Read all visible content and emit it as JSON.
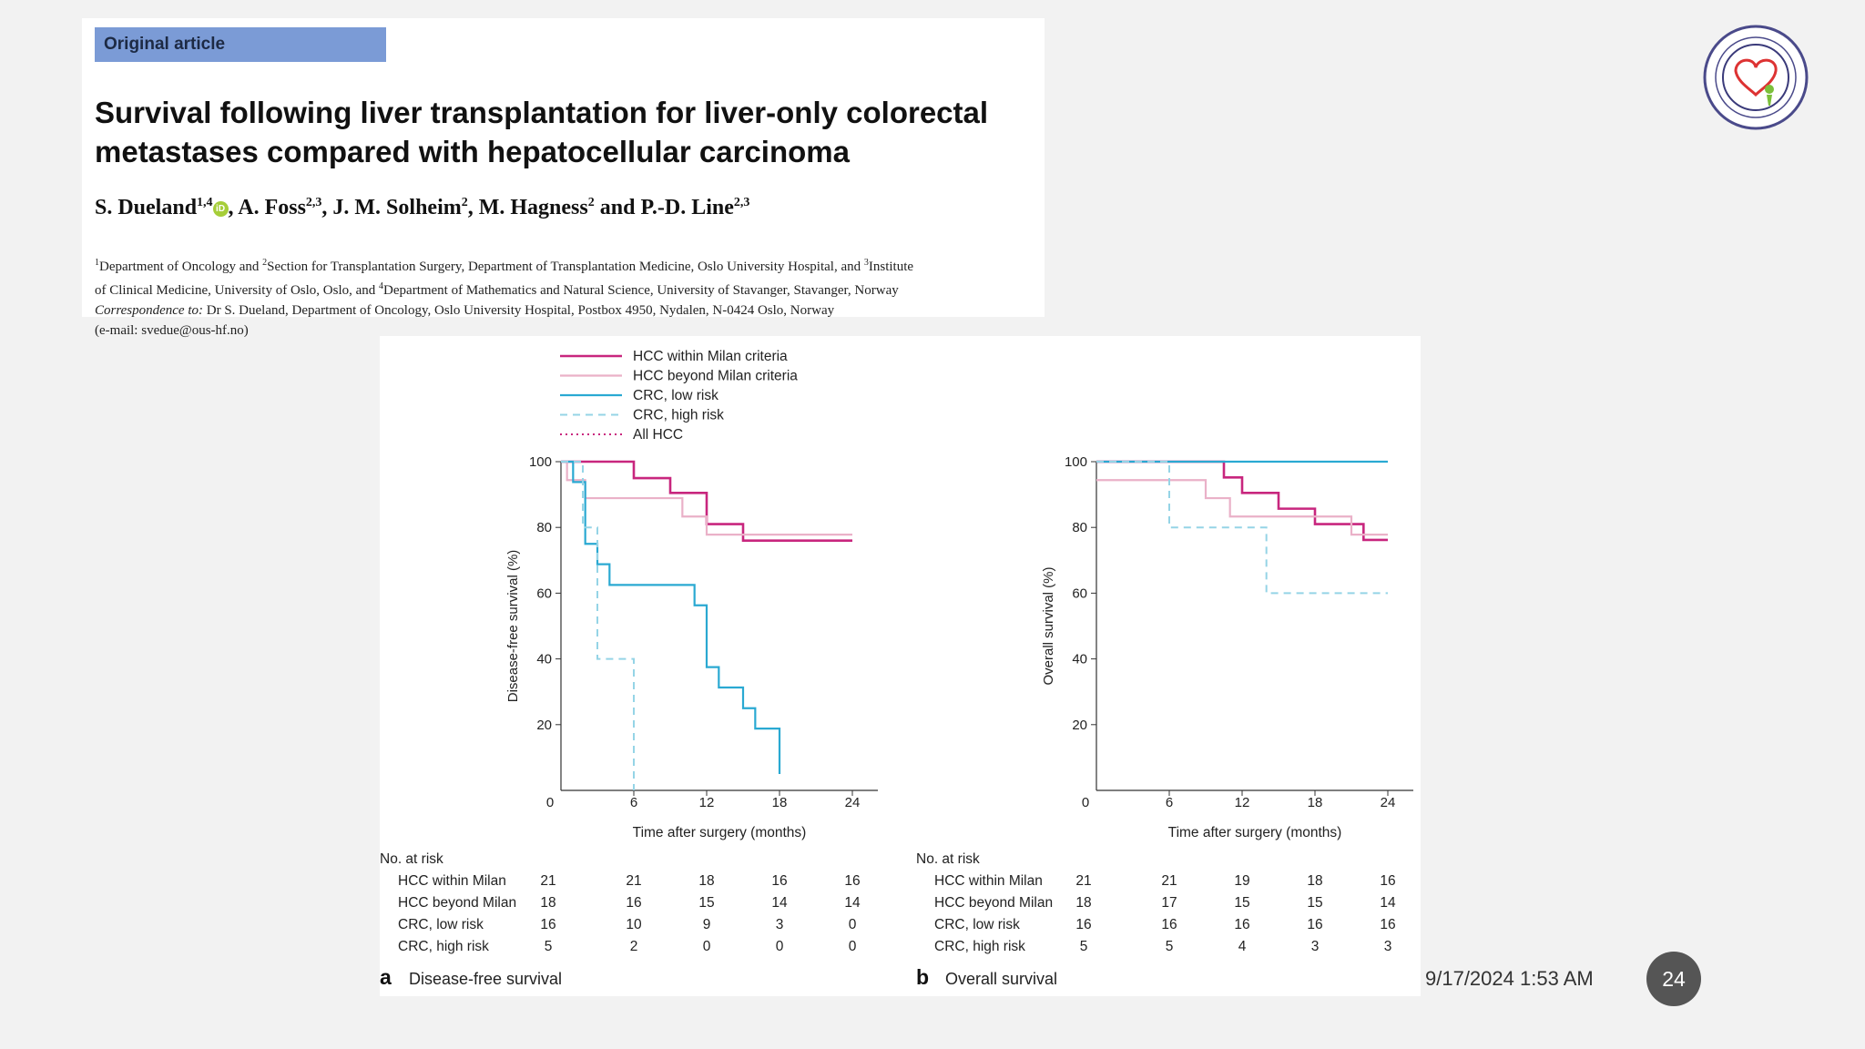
{
  "article": {
    "tag": "Original article",
    "title": "Survival following liver transplantation for liver-only colorectal metastases compared with hepatocellular carcinoma",
    "authors": [
      {
        "name": "S. Dueland",
        "sup": "1,4"
      },
      {
        "name": "A. Foss",
        "sup": "2,3"
      },
      {
        "name": "J. M. Solheim",
        "sup": "2"
      },
      {
        "name": "M. Hagness",
        "sup": "2"
      },
      {
        "name": "P.-D. Line",
        "sup": "2,3"
      }
    ],
    "orcid_label": "iD",
    "sep_comma": ", ",
    "sep_and": " and ",
    "affil_line1_a": "Department of Oncology and ",
    "affil_line1_b": "Section for Transplantation Surgery, Department of Transplantation Medicine, Oslo University Hospital, and ",
    "affil_line1_c": "Institute",
    "affil_line2_a": "of Clinical Medicine, University of Oslo, Oslo, and ",
    "affil_line2_b": "Department of Mathematics and Natural Science, University of Stavanger, Stavanger, Norway",
    "correspondence_label": "Correspondence to:",
    "correspondence_text": " Dr S. Dueland, Department of Oncology, Oslo University Hospital, Postbox 4950, Nydalen, N-0424 Oslo, Norway",
    "email": "(e-mail: svedue@ous-hf.no)",
    "sup1": "1",
    "sup2": "2",
    "sup3": "3",
    "sup4": "4"
  },
  "colors": {
    "hcc_within": "#c8267e",
    "hcc_beyond": "#eab1c8",
    "crc_low": "#2aa9d2",
    "crc_high": "#95d4e6",
    "all_hcc": "#c8267e"
  },
  "figure": {
    "legend": [
      "HCC within Milan criteria",
      "HCC beyond Milan criteria",
      "CRC, low risk",
      "CRC, high risk",
      "All HCC"
    ],
    "xlabel": "Time after surgery (months)",
    "risk_header": "No. at risk",
    "risk_groups": [
      "HCC within Milan",
      "HCC beyond Milan",
      "CRC, low risk",
      "CRC, high risk"
    ]
  },
  "chart_data": [
    {
      "type": "line",
      "panel_letter": "a",
      "panel_title": "Disease-free survival",
      "ylabel": "Disease-free survival (%)",
      "xlabel": "Time after surgery (months)",
      "xlim": [
        0,
        24
      ],
      "ylim": [
        0,
        100
      ],
      "xticks": [
        0,
        6,
        12,
        18,
        24
      ],
      "yticks": [
        20,
        40,
        60,
        80,
        100
      ],
      "series": [
        {
          "name": "HCC within Milan criteria",
          "x": [
            0,
            3,
            6,
            9,
            12,
            15,
            24
          ],
          "y": [
            100,
            100,
            95,
            90.5,
            81,
            76,
            76
          ]
        },
        {
          "name": "HCC beyond Milan criteria",
          "x": [
            0,
            0.5,
            2,
            10,
            12,
            24
          ],
          "y": [
            100,
            94.4,
            88.9,
            83.3,
            77.8,
            77.8
          ]
        },
        {
          "name": "CRC, low risk",
          "x": [
            0,
            1,
            2,
            3,
            4,
            5,
            11,
            12,
            13,
            15,
            16,
            18
          ],
          "y": [
            100,
            93.8,
            75,
            68.8,
            62.5,
            62.5,
            56.3,
            37.5,
            31.3,
            25,
            18.8,
            5
          ]
        },
        {
          "name": "CRC, high risk",
          "x": [
            0,
            1.8,
            3,
            6,
            6
          ],
          "y": [
            100,
            80,
            40,
            40,
            0
          ]
        }
      ],
      "at_risk": {
        "times": [
          0,
          6,
          12,
          18,
          24
        ],
        "HCC within Milan": [
          21,
          21,
          18,
          16,
          16
        ],
        "HCC beyond Milan": [
          18,
          16,
          15,
          14,
          14
        ],
        "CRC, low risk": [
          16,
          10,
          9,
          3,
          0
        ],
        "CRC, high risk": [
          5,
          2,
          0,
          0,
          0
        ]
      }
    },
    {
      "type": "line",
      "panel_letter": "b",
      "panel_title": "Overall survival",
      "ylabel": "Overall survival (%)",
      "xlabel": "Time after surgery (months)",
      "xlim": [
        0,
        24
      ],
      "ylim": [
        0,
        100
      ],
      "xticks": [
        0,
        6,
        12,
        18,
        24
      ],
      "yticks": [
        20,
        40,
        60,
        80,
        100
      ],
      "series": [
        {
          "name": "HCC within Milan criteria",
          "x": [
            0,
            10.5,
            12,
            15,
            18,
            22,
            24
          ],
          "y": [
            100,
            95.2,
            90.5,
            85.7,
            81,
            76.2,
            76.2
          ]
        },
        {
          "name": "HCC beyond Milan criteria",
          "x": [
            0,
            9,
            11,
            21,
            24
          ],
          "y": [
            94.4,
            88.9,
            83.3,
            77.8,
            77.8
          ]
        },
        {
          "name": "CRC, low risk",
          "x": [
            0,
            24
          ],
          "y": [
            100,
            100
          ]
        },
        {
          "name": "CRC, high risk",
          "x": [
            0,
            6,
            14,
            24
          ],
          "y": [
            100,
            80,
            60,
            60
          ]
        }
      ],
      "at_risk": {
        "times": [
          0,
          6,
          12,
          18,
          24
        ],
        "HCC within Milan": [
          21,
          21,
          19,
          18,
          16
        ],
        "HCC beyond Milan": [
          18,
          17,
          15,
          15,
          14
        ],
        "CRC, low risk": [
          16,
          16,
          16,
          16,
          16
        ],
        "CRC, high risk": [
          5,
          5,
          4,
          3,
          3
        ]
      }
    }
  ],
  "footer": {
    "date": "9/17/2024 1:53 AM",
    "page": "24"
  }
}
